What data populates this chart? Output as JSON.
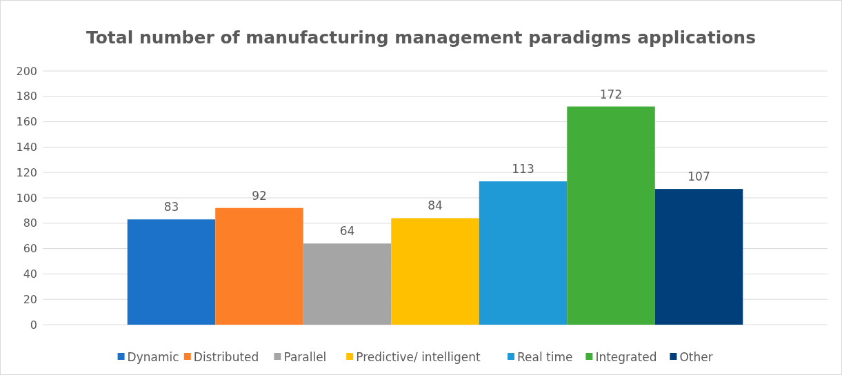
{
  "chart_data": {
    "type": "bar",
    "title": "Total number of manufacturing management paradigms applications",
    "categories": [
      null
    ],
    "series": [
      {
        "name": "Dynamic",
        "color": "#1b72c8",
        "values": [
          83
        ]
      },
      {
        "name": "Distributed",
        "color": "#fd7f28",
        "values": [
          92
        ]
      },
      {
        "name": "Parallel",
        "color": "#a5a5a5",
        "values": [
          64
        ]
      },
      {
        "name": "Predictive/ intelligent",
        "color": "#ffc000",
        "values": [
          84
        ]
      },
      {
        "name": "Real time",
        "color": "#1f9ad7",
        "values": [
          113
        ]
      },
      {
        "name": "Integrated",
        "color": "#43ad3a",
        "values": [
          172
        ]
      },
      {
        "name": "Other",
        "color": "#003f7a",
        "values": [
          107
        ]
      }
    ],
    "ylim": [
      0,
      200
    ],
    "yticks": [
      0,
      20,
      40,
      60,
      80,
      100,
      120,
      140,
      160,
      180,
      200
    ],
    "grid": "y",
    "data_labels": true,
    "legend": "bottom"
  }
}
